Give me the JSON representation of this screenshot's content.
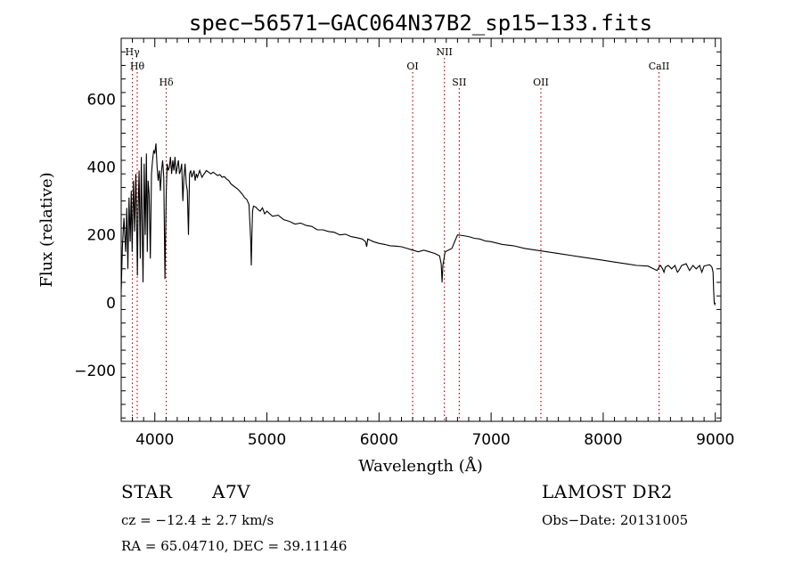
{
  "chart_data": {
    "type": "line",
    "title": "spec−56571−GAC064N37B2_sp15−133.fits",
    "xlabel": "Wavelength (Å)",
    "ylabel": "Flux (relative)",
    "xlim": [
      3700,
      9050
    ],
    "ylim": [
      -350,
      780
    ],
    "xticks": [
      4000,
      5000,
      6000,
      7000,
      8000,
      9000
    ],
    "xtick_labels": [
      "4000",
      "5000",
      "6000",
      "7000",
      "8000",
      "9000"
    ],
    "yticks": [
      -200,
      0,
      200,
      400,
      600
    ],
    "ytick_labels": [
      "−200",
      "0",
      "200",
      "400",
      "600"
    ],
    "grid": false,
    "line_color": "#000000",
    "marker_color": "#cc0000",
    "spectrum": {
      "x": [
        3700,
        3710,
        3725,
        3740,
        3750,
        3760,
        3770,
        3780,
        3790,
        3798,
        3800,
        3810,
        3820,
        3830,
        3835,
        3845,
        3850,
        3860,
        3870,
        3880,
        3889,
        3895,
        3905,
        3915,
        3925,
        3933,
        3940,
        3950,
        3960,
        3970,
        3980,
        3990,
        4000,
        4010,
        4020,
        4030,
        4040,
        4050,
        4060,
        4070,
        4080,
        4090,
        4095,
        4102,
        4110,
        4120,
        4130,
        4140,
        4150,
        4160,
        4170,
        4180,
        4190,
        4200,
        4210,
        4220,
        4230,
        4240,
        4250,
        4260,
        4270,
        4280,
        4290,
        4300,
        4310,
        4320,
        4330,
        4340,
        4350,
        4360,
        4370,
        4380,
        4390,
        4400,
        4420,
        4440,
        4460,
        4480,
        4500,
        4520,
        4540,
        4560,
        4580,
        4600,
        4620,
        4640,
        4660,
        4680,
        4700,
        4720,
        4740,
        4760,
        4780,
        4800,
        4820,
        4840,
        4850,
        4856,
        4861,
        4866,
        4872,
        4880,
        4900,
        4920,
        4940,
        4960,
        4980,
        5000,
        5050,
        5100,
        5150,
        5200,
        5250,
        5300,
        5350,
        5400,
        5450,
        5500,
        5550,
        5600,
        5650,
        5700,
        5750,
        5800,
        5850,
        5880,
        5890,
        5900,
        5950,
        6000,
        6050,
        6100,
        6150,
        6200,
        6250,
        6300,
        6350,
        6400,
        6450,
        6500,
        6540,
        6555,
        6563,
        6570,
        6590,
        6620,
        6650,
        6700,
        6750,
        6800,
        6850,
        6900,
        6950,
        7000,
        7100,
        7200,
        7300,
        7400,
        7500,
        7600,
        7700,
        7800,
        7900,
        8000,
        8100,
        8200,
        8300,
        8400,
        8480,
        8498,
        8510,
        8530,
        8542,
        8555,
        8580,
        8610,
        8640,
        8662,
        8675,
        8700,
        8740,
        8770,
        8800,
        8830,
        8860,
        8880,
        8900,
        8920,
        8950,
        8970,
        8980,
        8985,
        8990,
        8995,
        9000
      ],
      "y": [
        30,
        160,
        250,
        150,
        280,
        100,
        310,
        180,
        330,
        150,
        200,
        360,
        210,
        380,
        300,
        80,
        260,
        390,
        130,
        430,
        180,
        60,
        410,
        200,
        440,
        150,
        360,
        320,
        130,
        380,
        420,
        450,
        440,
        470,
        400,
        360,
        390,
        330,
        390,
        420,
        370,
        70,
        180,
        330,
        410,
        390,
        400,
        430,
        380,
        420,
        390,
        430,
        380,
        400,
        420,
        380,
        390,
        410,
        300,
        370,
        410,
        350,
        330,
        200,
        380,
        390,
        370,
        380,
        390,
        360,
        380,
        370,
        380,
        390,
        370,
        380,
        390,
        385,
        380,
        385,
        380,
        375,
        378,
        370,
        372,
        365,
        360,
        350,
        345,
        340,
        335,
        328,
        320,
        310,
        305,
        290,
        220,
        180,
        110,
        200,
        270,
        285,
        282,
        275,
        270,
        280,
        262,
        270,
        255,
        258,
        245,
        240,
        232,
        235,
        228,
        225,
        215,
        215,
        210,
        208,
        200,
        202,
        195,
        192,
        188,
        180,
        165,
        188,
        180,
        175,
        172,
        168,
        167,
        165,
        160,
        155,
        150,
        155,
        150,
        145,
        138,
        115,
        60,
        110,
        150,
        155,
        160,
        200,
        198,
        195,
        190,
        188,
        182,
        180,
        172,
        168,
        160,
        155,
        150,
        145,
        140,
        135,
        130,
        125,
        120,
        115,
        110,
        108,
        95,
        105,
        110,
        100,
        90,
        105,
        110,
        100,
        110,
        90,
        95,
        110,
        115,
        95,
        110,
        100,
        110,
        90,
        108,
        110,
        112,
        105,
        90,
        40,
        0,
        -5,
        0
      ]
    },
    "lines": [
      {
        "label": "Hγ",
        "x": 3800,
        "row": 0
      },
      {
        "label": "Hθ",
        "x": 3843,
        "row": 1
      },
      {
        "label": "Hδ",
        "x": 4102,
        "row": 2
      },
      {
        "label": "OI",
        "x": 6300,
        "row": 1
      },
      {
        "label": "NII",
        "x": 6583,
        "row": 0
      },
      {
        "label": "SII",
        "x": 6716,
        "row": 2
      },
      {
        "label": "OII",
        "x": 7444,
        "row": 2
      },
      {
        "label": "CaII",
        "x": 8498,
        "row": 1
      }
    ]
  },
  "info": {
    "object_class": "STAR",
    "subclass": "A7V",
    "survey": "LAMOST DR2",
    "cz": "cz = −12.4 ± 2.7 km/s",
    "obs_date": "Obs−Date: 20131005",
    "coords": "RA =  65.04710, DEC =  39.11146"
  }
}
